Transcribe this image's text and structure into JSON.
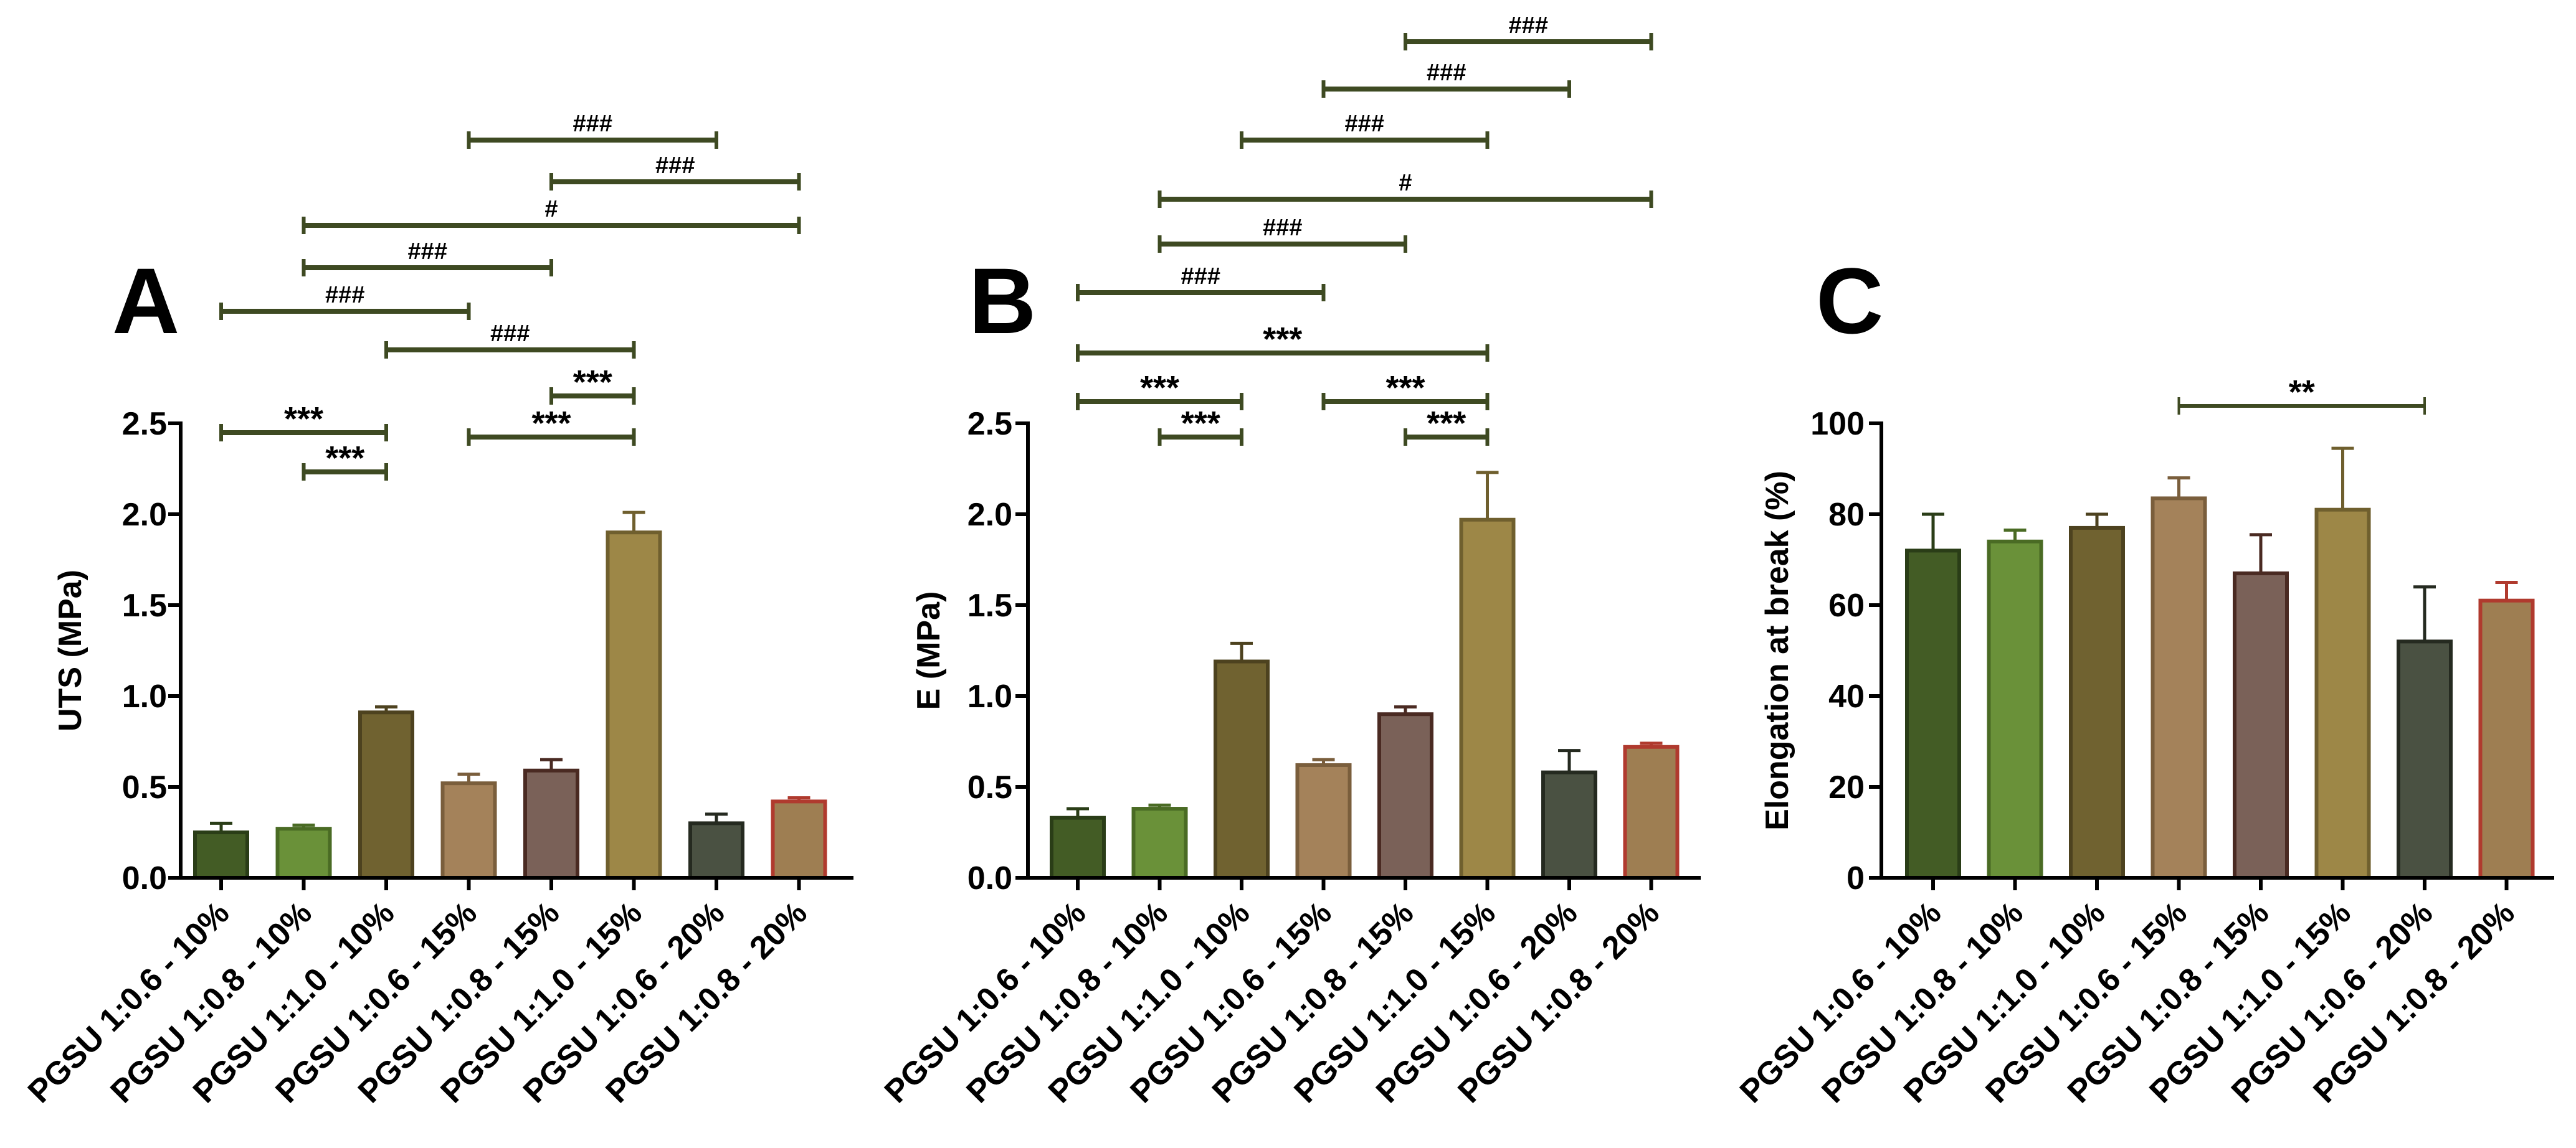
{
  "chart_data": [
    {
      "panel": "A",
      "type": "bar",
      "ylabel": "UTS (MPa)",
      "ylim": [
        0,
        2.5
      ],
      "yticks": [
        "0.0",
        "0.5",
        "1.0",
        "1.5",
        "2.0",
        "2.5"
      ],
      "ytick_values": [
        0,
        0.5,
        1.0,
        1.5,
        2.0,
        2.5
      ],
      "categories": [
        "PGSU 1:0.6 - 10%",
        "PGSU 1:0.8 - 10%",
        "PGSU 1:1.0 - 10%",
        "PGSU 1:0.6 - 15%",
        "PGSU 1:0.8 - 15%",
        "PGSU 1:1.0 - 15%",
        "PGSU 1:0.6 - 20%",
        "PGSU 1:0.8 - 20%"
      ],
      "values": [
        0.25,
        0.27,
        0.91,
        0.52,
        0.59,
        1.9,
        0.3,
        0.42
      ],
      "errors": [
        0.05,
        0.02,
        0.03,
        0.05,
        0.06,
        0.11,
        0.05,
        0.02
      ],
      "comparisons": [
        {
          "from": 0,
          "to": 2,
          "label": "***"
        },
        {
          "from": 1,
          "to": 2,
          "label": "***"
        },
        {
          "from": 3,
          "to": 5,
          "label": "***"
        },
        {
          "from": 4,
          "to": 5,
          "label": "***"
        },
        {
          "from": 2,
          "to": 5,
          "label": "###"
        },
        {
          "from": 0,
          "to": 3,
          "label": "###"
        },
        {
          "from": 1,
          "to": 4,
          "label": "###"
        },
        {
          "from": 1,
          "to": 7,
          "label": "#"
        },
        {
          "from": 4,
          "to": 7,
          "label": "###"
        },
        {
          "from": 3,
          "to": 6,
          "label": "###"
        }
      ]
    },
    {
      "panel": "B",
      "type": "bar",
      "ylabel": "E (MPa)",
      "ylim": [
        0,
        2.5
      ],
      "yticks": [
        "0.0",
        "0.5",
        "1.0",
        "1.5",
        "2.0",
        "2.5"
      ],
      "ytick_values": [
        0,
        0.5,
        1.0,
        1.5,
        2.0,
        2.5
      ],
      "categories": [
        "PGSU 1:0.6 - 10%",
        "PGSU 1:0.8 - 10%",
        "PGSU 1:1.0 - 10%",
        "PGSU 1:0.6 - 15%",
        "PGSU 1:0.8 - 15%",
        "PGSU 1:1.0 - 15%",
        "PGSU 1:0.6 - 20%",
        "PGSU 1:0.8 - 20%"
      ],
      "values": [
        0.33,
        0.38,
        1.19,
        0.62,
        0.9,
        1.97,
        0.58,
        0.72
      ],
      "errors": [
        0.05,
        0.02,
        0.1,
        0.03,
        0.04,
        0.26,
        0.12,
        0.02
      ],
      "comparisons": [
        {
          "from": 1,
          "to": 2,
          "label": "***"
        },
        {
          "from": 0,
          "to": 2,
          "label": "***"
        },
        {
          "from": 4,
          "to": 5,
          "label": "***"
        },
        {
          "from": 3,
          "to": 5,
          "label": "***"
        },
        {
          "from": 0,
          "to": 5,
          "label": "***"
        },
        {
          "from": 0,
          "to": 3,
          "label": "###"
        },
        {
          "from": 1,
          "to": 4,
          "label": "###"
        },
        {
          "from": 1,
          "to": 7,
          "label": "#"
        },
        {
          "from": 2,
          "to": 5,
          "label": "###"
        },
        {
          "from": 3,
          "to": 6,
          "label": "###"
        },
        {
          "from": 4,
          "to": 7,
          "label": "###"
        }
      ]
    },
    {
      "panel": "C",
      "type": "bar",
      "ylabel": "Elongation at break (%)",
      "ylim": [
        0,
        100
      ],
      "yticks": [
        "0",
        "20",
        "40",
        "60",
        "80",
        "100"
      ],
      "ytick_values": [
        0,
        20,
        40,
        60,
        80,
        100
      ],
      "categories": [
        "PGSU 1:0.6 - 10%",
        "PGSU 1:0.8 - 10%",
        "PGSU 1:1.0 - 10%",
        "PGSU 1:0.6 - 15%",
        "PGSU 1:0.8 - 15%",
        "PGSU 1:1.0 - 15%",
        "PGSU 1:0.6 - 20%",
        "PGSU 1:0.8 - 20%"
      ],
      "values": [
        72,
        74,
        77,
        83.5,
        67,
        81,
        52,
        61
      ],
      "errors": [
        8,
        2.5,
        3,
        4.5,
        8.5,
        13.5,
        12,
        4
      ],
      "comparisons": [
        {
          "from": 3,
          "to": 6,
          "label": "**"
        }
      ]
    }
  ],
  "series_colors": {
    "fills": [
      "#435c25",
      "#6a9139",
      "#706230",
      "#a4825a",
      "#7a6158",
      "#9d8747",
      "#4a5142",
      "#9e7e52"
    ],
    "edges": [
      "#2a3d17",
      "#4a6b24",
      "#4d421f",
      "#7a5e3c",
      "#4a2a22",
      "#6f5f2e",
      "#252a20",
      "#b03a2e"
    ],
    "bracket": "#3e4a22"
  }
}
